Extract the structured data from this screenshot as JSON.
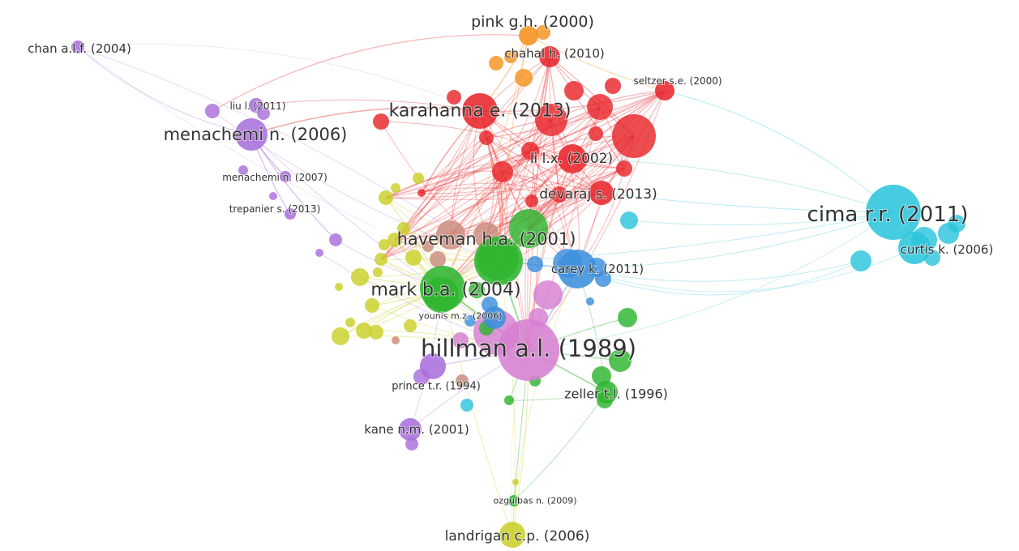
{
  "network": {
    "clusters": {
      "red": "#e8262b",
      "orange": "#f4921e",
      "purple": "#a96fdc",
      "yellow": "#c9cf27",
      "green": "#2db52f",
      "blue": "#3b8fdd",
      "cyan": "#2cc5dc",
      "pink": "#d67fd2",
      "brown": "#c98a7a"
    },
    "nodes": [
      {
        "id": "pink-gh",
        "label": "pink g.h. (2000)",
        "cluster": "orange",
        "weight": 3
      },
      {
        "id": "chan-alf",
        "label": "chan a.l.f. (2004)",
        "cluster": "purple",
        "weight": 2
      },
      {
        "id": "chahal-h",
        "label": "chahal h. (2010)",
        "cluster": "red",
        "weight": 2
      },
      {
        "id": "seltzer",
        "label": "seltzer s.e. (2000)",
        "cluster": "red",
        "weight": 2
      },
      {
        "id": "liu",
        "label": "liu l. (2011)",
        "cluster": "purple",
        "weight": 1
      },
      {
        "id": "karahanna",
        "label": "karahanna e. (2013)",
        "cluster": "red",
        "weight": 5
      },
      {
        "id": "menachemi-2006",
        "label": "menachemi n. (2006)",
        "cluster": "purple",
        "weight": 4
      },
      {
        "id": "li-lx",
        "label": "li l.x. (2002)",
        "cluster": "red",
        "weight": 4
      },
      {
        "id": "menachemi-2007",
        "label": "menachemi n. (2007)",
        "cluster": "purple",
        "weight": 1
      },
      {
        "id": "devaraj",
        "label": "devaraj s. (2013)",
        "cluster": "red",
        "weight": 3
      },
      {
        "id": "trepanier",
        "label": "trepanier s. (2013)",
        "cluster": "purple",
        "weight": 1
      },
      {
        "id": "cima",
        "label": "cima r.r. (2011)",
        "cluster": "cyan",
        "weight": 6
      },
      {
        "id": "curtis",
        "label": "curtis k. (2006)",
        "cluster": "cyan",
        "weight": 3
      },
      {
        "id": "haveman",
        "label": "haveman h.a. (2001)",
        "cluster": "green",
        "weight": 5
      },
      {
        "id": "carey",
        "label": "carey k. (2011)",
        "cluster": "blue",
        "weight": 4
      },
      {
        "id": "mark",
        "label": "mark b.a. (2004)",
        "cluster": "green",
        "weight": 6
      },
      {
        "id": "younis",
        "label": "younis m.z. (2006)",
        "cluster": "blue",
        "weight": 2
      },
      {
        "id": "hillman",
        "label": "hillman a.l. (1989)",
        "cluster": "pink",
        "weight": 7
      },
      {
        "id": "prince",
        "label": "prince t.r. (1994)",
        "cluster": "purple",
        "weight": 3
      },
      {
        "id": "zeller",
        "label": "zeller t.l. (1996)",
        "cluster": "green",
        "weight": 3
      },
      {
        "id": "kane",
        "label": "kane n.m. (2001)",
        "cluster": "purple",
        "weight": 2
      },
      {
        "id": "ozgulbas",
        "label": "ozgulbas n. (2009)",
        "cluster": "green",
        "weight": 1
      },
      {
        "id": "landrigan",
        "label": "landrigan c.p. (2006)",
        "cluster": "yellow",
        "weight": 3
      }
    ]
  }
}
